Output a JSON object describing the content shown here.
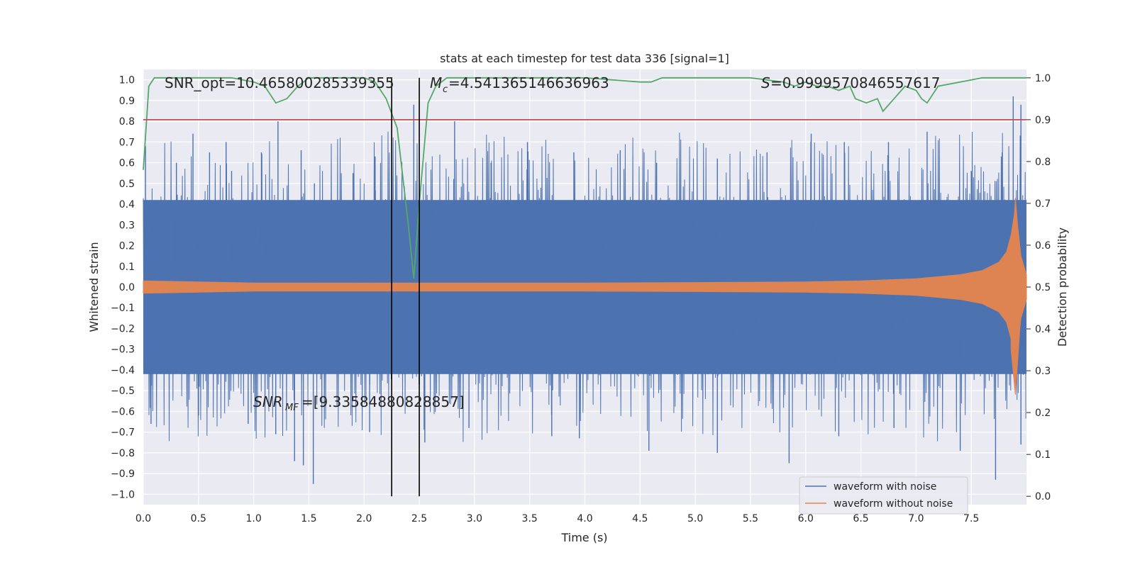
{
  "chart_data": {
    "type": "line",
    "title": "stats at each timestep for test data 336 [signal=1]",
    "xlabel": "Time (s)",
    "ylabel_left": "Whitened strain",
    "ylabel_right": "Detection probability",
    "xlim": [
      0,
      8
    ],
    "ylim_left": [
      -1.05,
      1.05
    ],
    "ylim_right": [
      -0.02,
      1.02
    ],
    "x_ticks": [
      0.0,
      0.5,
      1.0,
      1.5,
      2.0,
      2.5,
      3.0,
      3.5,
      4.0,
      4.5,
      5.0,
      5.5,
      6.0,
      6.5,
      7.0,
      7.5
    ],
    "x_tick_labels": [
      "0.0",
      "0.5",
      "1.0",
      "1.5",
      "2.0",
      "2.5",
      "3.0",
      "3.5",
      "4.0",
      "4.5",
      "5.0",
      "5.5",
      "6.0",
      "6.5",
      "7.0",
      "7.5"
    ],
    "y_left_ticks": [
      1.0,
      0.9,
      0.8,
      0.7,
      0.6,
      0.5,
      0.4,
      0.3,
      0.2,
      0.1,
      0.0,
      -0.1,
      -0.2,
      -0.3,
      -0.4,
      -0.5,
      -0.6,
      -0.7,
      -0.8,
      -0.9,
      -1.0
    ],
    "y_left_tick_labels": [
      "1.0",
      "0.9",
      "0.8",
      "0.7",
      "0.6",
      "0.5",
      "0.4",
      "0.3",
      "0.2",
      "0.1",
      "0.0",
      "−0.1",
      "−0.2",
      "−0.3",
      "−0.4",
      "−0.5",
      "−0.6",
      "−0.7",
      "−0.8",
      "−0.9",
      "−1.0"
    ],
    "y_right_ticks": [
      1.0,
      0.9,
      0.8,
      0.7,
      0.6,
      0.5,
      0.4,
      0.3,
      0.2,
      0.1,
      0.0
    ],
    "y_right_tick_labels": [
      "1.0",
      "0.9",
      "0.8",
      "0.7",
      "0.6",
      "0.5",
      "0.4",
      "0.3",
      "0.2",
      "0.1",
      "0.0"
    ],
    "grid": true,
    "legend_position": "lower-right",
    "series": [
      {
        "name": "waveform with noise",
        "axis": "left",
        "color": "#4c72b0",
        "envelope_description": "dense noisy strain, roughly ±0.5 with spikes",
        "peaks_upper": [
          [
            0.02,
            0.68
          ],
          [
            0.3,
            0.6
          ],
          [
            0.45,
            0.74
          ],
          [
            0.6,
            0.65
          ],
          [
            0.75,
            0.7
          ],
          [
            0.8,
            0.56
          ],
          [
            1.07,
            0.65
          ],
          [
            1.22,
            0.8
          ],
          [
            1.43,
            0.66
          ],
          [
            1.55,
            0.5
          ],
          [
            1.9,
            0.55
          ],
          [
            2.1,
            0.63
          ],
          [
            2.45,
            0.88
          ],
          [
            2.82,
            0.8
          ],
          [
            3.15,
            0.6
          ],
          [
            3.48,
            0.7
          ],
          [
            3.9,
            0.65
          ],
          [
            4.32,
            0.66
          ],
          [
            4.65,
            0.6
          ],
          [
            5.2,
            0.62
          ],
          [
            5.65,
            0.65
          ],
          [
            6.05,
            0.74
          ],
          [
            6.35,
            0.7
          ],
          [
            6.75,
            0.7
          ],
          [
            7.1,
            0.75
          ],
          [
            7.5,
            0.56
          ],
          [
            7.78,
            0.65
          ],
          [
            7.88,
            0.92
          ],
          [
            7.95,
            0.88
          ]
        ],
        "peaks_lower": [
          [
            0.07,
            -0.66
          ],
          [
            0.5,
            -0.62
          ],
          [
            0.95,
            -0.66
          ],
          [
            1.2,
            -0.71
          ],
          [
            1.37,
            -0.84
          ],
          [
            1.45,
            -0.86
          ],
          [
            1.54,
            -0.95
          ],
          [
            2.05,
            -0.7
          ],
          [
            2.55,
            -0.75
          ],
          [
            2.95,
            -0.68
          ],
          [
            3.7,
            -0.72
          ],
          [
            3.95,
            -0.73
          ],
          [
            4.58,
            -0.79
          ],
          [
            5.2,
            -0.8
          ],
          [
            5.85,
            -0.85
          ],
          [
            6.3,
            -0.72
          ],
          [
            6.8,
            -0.68
          ],
          [
            7.4,
            -0.79
          ],
          [
            7.72,
            -0.93
          ],
          [
            7.95,
            -0.76
          ]
        ]
      },
      {
        "name": "waveform without noise",
        "axis": "left",
        "color": "#dd8452",
        "envelope_description": "chirp signal, amplitude ~0.03 growing to ~0.43 at merger near t=7.9 s",
        "envelope": [
          [
            0.0,
            0.03
          ],
          [
            1.0,
            0.02
          ],
          [
            2.0,
            0.02
          ],
          [
            3.0,
            0.02
          ],
          [
            4.0,
            0.02
          ],
          [
            5.0,
            0.022
          ],
          [
            6.0,
            0.025
          ],
          [
            6.5,
            0.03
          ],
          [
            7.0,
            0.04
          ],
          [
            7.4,
            0.06
          ],
          [
            7.6,
            0.08
          ],
          [
            7.75,
            0.12
          ],
          [
            7.82,
            0.17
          ],
          [
            7.86,
            0.25
          ],
          [
            7.89,
            0.35
          ],
          [
            7.9,
            0.43
          ],
          [
            7.92,
            0.3
          ],
          [
            7.95,
            0.15
          ],
          [
            8.0,
            0.06
          ]
        ],
        "lower_envelope": [
          [
            7.86,
            -0.3
          ],
          [
            7.9,
            -0.52
          ],
          [
            7.94,
            -0.2
          ]
        ]
      },
      {
        "name": "detection probability",
        "axis": "right",
        "color": "#55a868",
        "points": [
          [
            0.0,
            0.78
          ],
          [
            0.05,
            0.98
          ],
          [
            0.1,
            1.0
          ],
          [
            0.2,
            1.0
          ],
          [
            0.5,
            1.0
          ],
          [
            0.8,
            1.0
          ],
          [
            1.0,
            0.99
          ],
          [
            1.1,
            0.98
          ],
          [
            1.2,
            0.94
          ],
          [
            1.3,
            0.95
          ],
          [
            1.4,
            0.98
          ],
          [
            1.5,
            1.0
          ],
          [
            1.8,
            1.0
          ],
          [
            2.0,
            1.0
          ],
          [
            2.1,
            0.99
          ],
          [
            2.2,
            0.95
          ],
          [
            2.3,
            0.88
          ],
          [
            2.4,
            0.65
          ],
          [
            2.45,
            0.52
          ],
          [
            2.5,
            0.7
          ],
          [
            2.58,
            0.94
          ],
          [
            2.65,
            0.98
          ],
          [
            2.75,
            1.0
          ],
          [
            3.0,
            1.0
          ],
          [
            3.5,
            1.0
          ],
          [
            4.0,
            1.0
          ],
          [
            4.5,
            0.99
          ],
          [
            4.6,
            0.99
          ],
          [
            4.7,
            1.0
          ],
          [
            5.0,
            1.0
          ],
          [
            5.5,
            1.0
          ],
          [
            5.8,
            0.99
          ],
          [
            5.9,
            0.98
          ],
          [
            6.0,
            0.99
          ],
          [
            6.1,
            0.98
          ],
          [
            6.2,
            0.98
          ],
          [
            6.3,
            0.97
          ],
          [
            6.4,
            0.98
          ],
          [
            6.45,
            0.95
          ],
          [
            6.55,
            0.94
          ],
          [
            6.65,
            0.95
          ],
          [
            6.7,
            0.92
          ],
          [
            6.8,
            0.95
          ],
          [
            6.9,
            0.98
          ],
          [
            7.0,
            0.97
          ],
          [
            7.05,
            0.95
          ],
          [
            7.1,
            0.94
          ],
          [
            7.2,
            0.98
          ],
          [
            7.4,
            0.99
          ],
          [
            7.6,
            1.0
          ],
          [
            8.0,
            1.0
          ]
        ]
      }
    ],
    "threshold_line": {
      "axis": "right",
      "value": 0.9,
      "color": "#c44e52"
    },
    "vertical_lines": [
      2.25,
      2.5
    ],
    "annotations": {
      "snr_opt": "SNR_opt=10.465800285339355",
      "mc": "=4.541365146636963",
      "mc_symbol": "M",
      "mc_sub": "c",
      "s": "=0.9999570846557617",
      "s_symbol": "S",
      "snr_mf": "=[9.33584880828857]",
      "snr_mf_symbol": "SNR",
      "snr_mf_sub": "MF"
    }
  },
  "legend": {
    "items": [
      {
        "label": "waveform with noise",
        "color": "#4c72b0"
      },
      {
        "label": "waveform without noise",
        "color": "#dd8452"
      }
    ]
  }
}
